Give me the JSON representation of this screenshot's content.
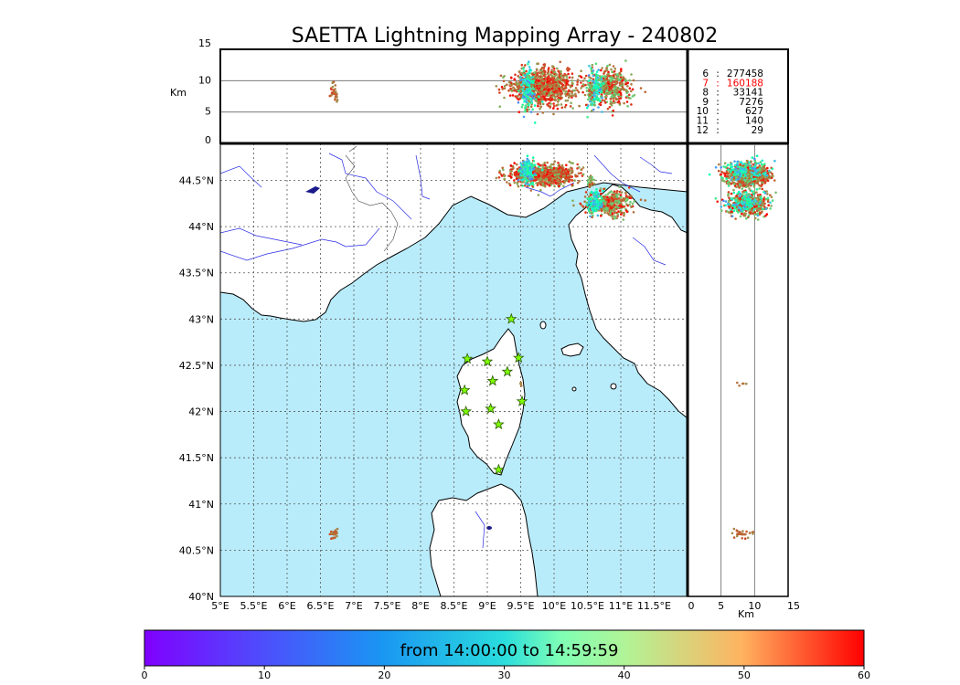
{
  "chart_data": {
    "type": "scatter",
    "title": "SAETTA Lightning Mapping Array - 240802",
    "map": {
      "lon_range": [
        5,
        12
      ],
      "lat_range": [
        40,
        44.9
      ],
      "lon_ticks": [
        "5°E",
        "5.5°E",
        "6°E",
        "6.5°E",
        "7°E",
        "7.5°E",
        "8°E",
        "8.5°E",
        "9°E",
        "9.5°E",
        "10°E",
        "10.5°E",
        "11°E",
        "11.5°E"
      ],
      "lat_ticks": [
        "40°N",
        "40.5°N",
        "41°N",
        "41.5°N",
        "42°N",
        "42.5°N",
        "43°N",
        "43.5°N",
        "44°N",
        "44.5°N"
      ],
      "grid": true,
      "sea_color": "#b9ecfb",
      "land_color": "#ffffff"
    },
    "altitude_panel": {
      "ylabel": "Km",
      "yticks": [
        "0",
        "5",
        "10",
        "15"
      ],
      "ylim": [
        0,
        15
      ]
    },
    "side_panel": {
      "xlabel": "Km",
      "xticks": [
        "0",
        "5",
        "10",
        "15"
      ],
      "xlim": [
        0,
        15
      ]
    },
    "station_stats": [
      {
        "stations": "6",
        "count": "277458",
        "highlight": false
      },
      {
        "stations": "7",
        "count": "160188",
        "highlight": true
      },
      {
        "stations": "8",
        "count": "33141",
        "highlight": false
      },
      {
        "stations": "9",
        "count": "7276",
        "highlight": false
      },
      {
        "stations": "10",
        "count": "627",
        "highlight": false
      },
      {
        "stations": "11",
        "count": "140",
        "highlight": false
      },
      {
        "stations": "12",
        "count": "29",
        "highlight": false
      }
    ],
    "highlight_color": "#ff0000",
    "stations": [
      {
        "lon": 9.36,
        "lat": 43.0
      },
      {
        "lon": 8.7,
        "lat": 42.57
      },
      {
        "lon": 9.0,
        "lat": 42.54
      },
      {
        "lon": 9.47,
        "lat": 42.58
      },
      {
        "lon": 9.3,
        "lat": 42.43
      },
      {
        "lon": 9.08,
        "lat": 42.33
      },
      {
        "lon": 8.66,
        "lat": 42.23
      },
      {
        "lon": 9.52,
        "lat": 42.11
      },
      {
        "lon": 9.05,
        "lat": 42.03
      },
      {
        "lon": 8.68,
        "lat": 42.0
      },
      {
        "lon": 9.17,
        "lat": 41.86
      },
      {
        "lon": 9.17,
        "lat": 41.37
      }
    ],
    "clusters": [
      {
        "lon": 9.85,
        "lat": 44.56,
        "lon_spread": 0.4,
        "lat_spread": 0.09,
        "alt": 9,
        "alt_spread": 2.5,
        "t_range": [
          45,
          60
        ],
        "n": 900
      },
      {
        "lon": 9.6,
        "lat": 44.6,
        "lon_spread": 0.1,
        "lat_spread": 0.1,
        "alt": 8.5,
        "alt_spread": 3,
        "t_range": [
          10,
          45
        ],
        "n": 160
      },
      {
        "lon": 10.82,
        "lat": 44.25,
        "lon_spread": 0.28,
        "lat_spread": 0.11,
        "alt": 9,
        "alt_spread": 2.5,
        "t_range": [
          40,
          60
        ],
        "n": 420
      },
      {
        "lon": 10.62,
        "lat": 44.25,
        "lon_spread": 0.1,
        "lat_spread": 0.1,
        "alt": 8.5,
        "alt_spread": 2.5,
        "t_range": [
          10,
          40
        ],
        "n": 110
      },
      {
        "lon": 10.55,
        "lat": 44.48,
        "lon_spread": 0.04,
        "lat_spread": 0.04,
        "alt": 8,
        "alt_spread": 1.5,
        "t_range": [
          40,
          55
        ],
        "n": 30
      },
      {
        "lon": 6.7,
        "lat": 40.68,
        "lon_spread": 0.05,
        "lat_spread": 0.03,
        "alt": 8,
        "alt_spread": 1.5,
        "t_range": [
          48,
          56
        ],
        "n": 30
      },
      {
        "lon": 9.5,
        "lat": 42.3,
        "lon_spread": 0.01,
        "lat_spread": 0.01,
        "alt": 8,
        "alt_spread": 1,
        "t_range": [
          48,
          52
        ],
        "n": 5
      }
    ],
    "colorbar": {
      "label": "from 14:00:00 to 14:59:59",
      "ticks": [
        "0",
        "10",
        "20",
        "30",
        "40",
        "50",
        "60"
      ],
      "range": [
        0,
        60
      ],
      "colormap": "rainbow"
    }
  }
}
